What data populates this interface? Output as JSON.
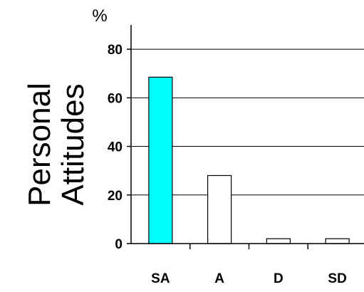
{
  "chart_data": {
    "type": "bar",
    "title": "Personal Attitudes",
    "title_lines": [
      "Personal",
      "Attitudes"
    ],
    "ylabel": "%",
    "xlabel": "",
    "categories": [
      "SA",
      "A",
      "D",
      "SD"
    ],
    "values": [
      68.5,
      28,
      2,
      2
    ],
    "ylim": [
      0,
      90
    ],
    "yticks": [
      0,
      20,
      40,
      60,
      80
    ],
    "grid": true,
    "legend": "none",
    "bar_colors": [
      "#00ffff",
      "#ffffff",
      "#ffffff",
      "#ffffff"
    ]
  }
}
